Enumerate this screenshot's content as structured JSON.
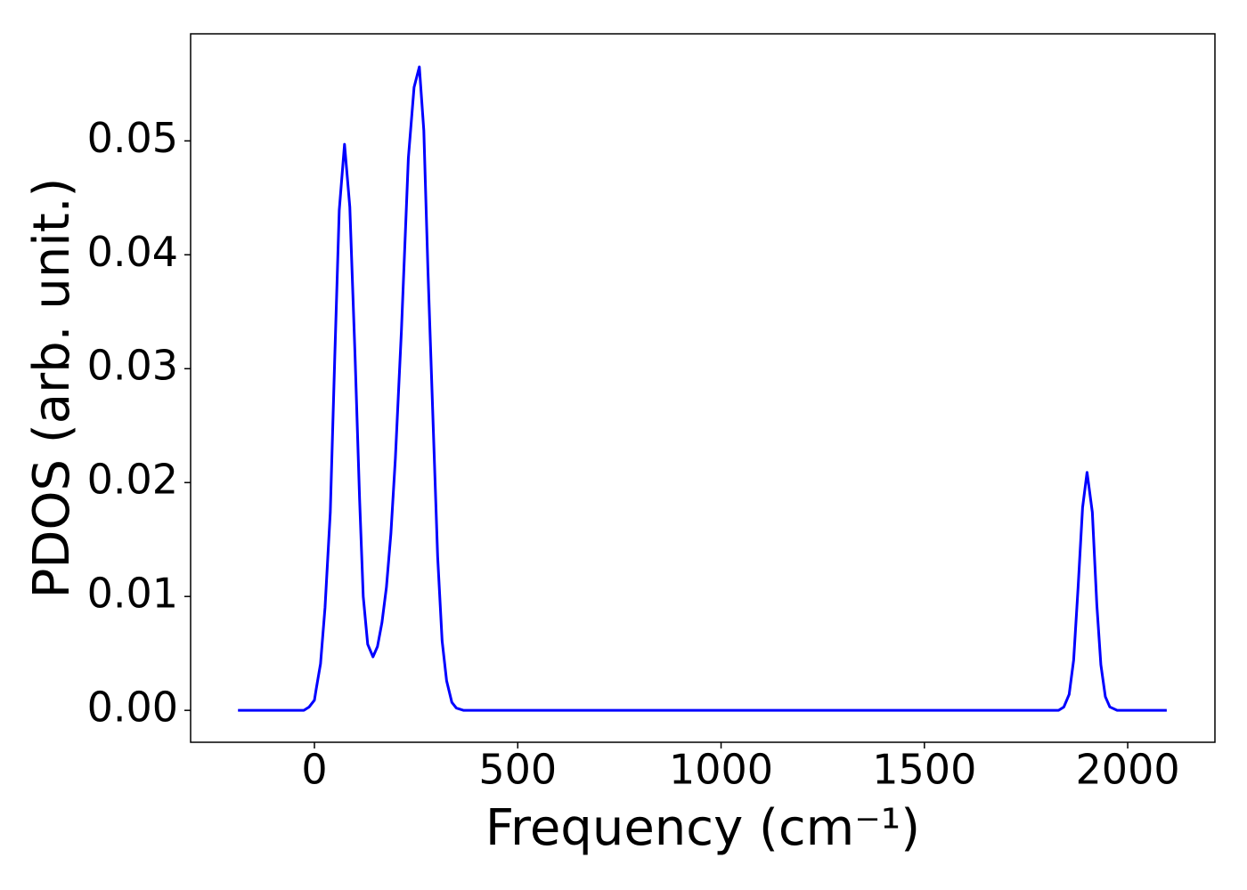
{
  "chart_data": {
    "type": "line",
    "xlabel": "Frequency (cm⁻¹)",
    "ylabel": "PDOS (arb. unit.)",
    "x": [
      -188,
      -26,
      -13,
      0,
      4,
      15,
      26,
      39,
      50,
      61,
      74,
      87,
      100,
      111,
      120,
      131,
      144,
      155,
      166,
      177,
      188,
      199,
      214,
      231,
      245,
      258,
      269,
      279,
      293,
      303,
      314,
      325,
      338,
      349,
      367,
      1830,
      1843,
      1856,
      1867,
      1878,
      1889,
      1900,
      1913,
      1924,
      1934,
      1945,
      1956,
      1974,
      2096
    ],
    "series": [
      {
        "name": "PDOS",
        "color": "#0000ff",
        "values": [
          0,
          0,
          0.0003,
          0.0009,
          0.0018,
          0.0041,
          0.009,
          0.0174,
          0.031,
          0.0439,
          0.0497,
          0.0442,
          0.031,
          0.0186,
          0.01,
          0.0058,
          0.0047,
          0.0056,
          0.0077,
          0.0108,
          0.0155,
          0.0221,
          0.0334,
          0.0485,
          0.0547,
          0.0565,
          0.0509,
          0.0388,
          0.024,
          0.0135,
          0.0061,
          0.0026,
          0.0007,
          0.0002,
          0,
          0,
          0.0003,
          0.0014,
          0.0044,
          0.0108,
          0.0178,
          0.0209,
          0.0174,
          0.0093,
          0.004,
          0.0012,
          0.0003,
          0,
          0
        ]
      }
    ],
    "xlim": [
      -304.5,
      2214.5
    ],
    "ylim": [
      -0.0028,
      0.0594
    ],
    "xticks": [
      0,
      500,
      1000,
      1500,
      2000
    ],
    "yticks": [
      {
        "value": 0,
        "label": "0.00"
      },
      0.01,
      0.02,
      0.03,
      0.04,
      0.05
    ],
    "grid": false
  }
}
